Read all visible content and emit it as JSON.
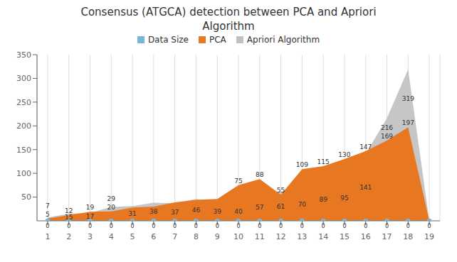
{
  "chart_data": {
    "type": "area",
    "title": "Consensus (ATGCA) detection between PCA and Apriori\nAlgorithm",
    "x": [
      1,
      2,
      3,
      4,
      5,
      6,
      7,
      8,
      9,
      10,
      11,
      12,
      13,
      14,
      15,
      16,
      17,
      18,
      19
    ],
    "xlim": [
      0.5,
      19.5
    ],
    "xticks": [
      1,
      2,
      3,
      4,
      5,
      6,
      7,
      8,
      9,
      10,
      11,
      12,
      13,
      14,
      15,
      16,
      17,
      18,
      19
    ],
    "ylim": [
      0,
      350
    ],
    "yticks": [
      50,
      100,
      150,
      200,
      250,
      300,
      350
    ],
    "grid": true,
    "legend": "top",
    "data_labels": true,
    "series": [
      {
        "name": "Data Size",
        "type": "line",
        "marker": "circle",
        "color": "#7ab4d8",
        "values": [
          0,
          0,
          0,
          0,
          0,
          0,
          0,
          0,
          0,
          0,
          0,
          0,
          0,
          0,
          0,
          0,
          0,
          0,
          0
        ],
        "value_labels": [
          "0",
          "0",
          "0",
          "0",
          "0",
          "0",
          "0",
          "0",
          "0",
          "0",
          "0",
          "0",
          "0",
          "0",
          "0",
          "0",
          "0",
          "0",
          "0"
        ]
      },
      {
        "name": "PCA",
        "type": "area",
        "color": "#e87722",
        "values": [
          5,
          12,
          19,
          20,
          28,
          30,
          39,
          44,
          46,
          75,
          88,
          55,
          109,
          115,
          130,
          147,
          169,
          197,
          0
        ],
        "value_labels": [
          "5",
          "12",
          "19",
          "20",
          null,
          null,
          null,
          null,
          null,
          "75",
          "88",
          "55",
          "109",
          "115",
          "130",
          "147",
          "169",
          "197",
          null
        ]
      },
      {
        "name": "Apriori Algorithm",
        "type": "area",
        "color": "#c0c0c0",
        "values": [
          7,
          15,
          17,
          29,
          31,
          38,
          37,
          46,
          39,
          40,
          57,
          61,
          70,
          89,
          95,
          141,
          216,
          319,
          0
        ],
        "value_labels": [
          "7",
          "15",
          "17",
          "29",
          "31",
          "38",
          "37",
          "46",
          "39",
          "40",
          "57",
          "61",
          "70",
          "89",
          "95",
          "141",
          "216",
          "319",
          null
        ]
      }
    ]
  }
}
